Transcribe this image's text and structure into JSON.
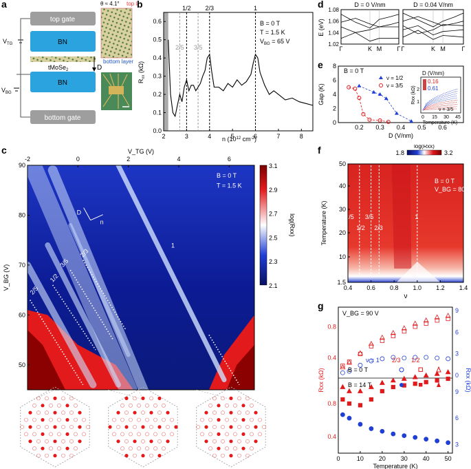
{
  "panel_labels": {
    "a": "a",
    "b": "b",
    "c": "c",
    "d": "d",
    "e": "e",
    "f": "f",
    "g": "g"
  },
  "panel_a": {
    "top_gate": "top gate",
    "bn_top": "BN",
    "bn_bottom": "BN",
    "bottom_gate": "bottom gate",
    "vtg": "V",
    "vtg_sub": "TG",
    "vbg": "V",
    "vbg_sub": "BG",
    "material": "tMoSe",
    "material_sub": "2",
    "d_arrow": "D",
    "theta": "θ ≈ 4.1°",
    "top_layer": "top layer",
    "bottom_layer": "bottom layer",
    "colors": {
      "gate": "#9e9e9e",
      "bn": "#2aa3df",
      "top_layer": "#e53935",
      "bottom_layer": "#1e56c8"
    }
  },
  "panel_b": {
    "ylabel": "R",
    "ylabel_sub": "xx",
    "ylabel_unit": " (kΩ)",
    "xlabel": "n (10",
    "xlabel_sup": "12",
    "xlabel_end": " cm",
    "xlabel_sup2": "-2",
    "xlabel_close": ")",
    "info": [
      "B = 0 T",
      "T = 1.5 K"
    ],
    "info_v": "V",
    "info_v_sub": "BG",
    "info_v_val": " = 65 V",
    "fill_labels": [
      "1/2",
      "2/3",
      "1"
    ],
    "fill_labels_gray": [
      "2/5",
      "3/5"
    ]
  },
  "chart_data": [
    {
      "type": "line",
      "id": "b",
      "title": "",
      "xlabel": "n (10^12 cm^-2)",
      "ylabel": "Rxx (kΩ)",
      "xlim": [
        2,
        8.5
      ],
      "ylim": [
        0,
        0.65
      ],
      "xticks": [
        2,
        3,
        4,
        5,
        6,
        7,
        8
      ],
      "yticks": [
        0,
        0.1,
        0.2,
        0.3,
        0.4,
        0.5,
        0.6
      ],
      "x": [
        2.2,
        2.3,
        2.4,
        2.5,
        2.6,
        2.7,
        2.8,
        2.9,
        3.0,
        3.1,
        3.2,
        3.3,
        3.4,
        3.5,
        3.6,
        3.7,
        3.8,
        3.9,
        4.0,
        4.1,
        4.2,
        4.4,
        4.6,
        4.8,
        5.0,
        5.2,
        5.4,
        5.6,
        5.8,
        5.9,
        6.0,
        6.1,
        6.2,
        6.4,
        6.6,
        6.8,
        7.0,
        7.3,
        7.6,
        7.9,
        8.2,
        8.5
      ],
      "y": [
        0.5,
        0.2,
        0.1,
        0.08,
        0.14,
        0.2,
        0.16,
        0.24,
        0.28,
        0.22,
        0.25,
        0.25,
        0.22,
        0.24,
        0.26,
        0.3,
        0.33,
        0.4,
        0.42,
        0.32,
        0.24,
        0.24,
        0.22,
        0.26,
        0.24,
        0.28,
        0.25,
        0.27,
        0.31,
        0.37,
        0.42,
        0.4,
        0.32,
        0.25,
        0.2,
        0.22,
        0.2,
        0.17,
        0.18,
        0.16,
        0.15,
        0.14
      ],
      "vlines": [
        {
          "x": 2.7,
          "label": "2/5"
        },
        {
          "x": 3.0,
          "label": "1/2"
        },
        {
          "x": 3.5,
          "label": "3/5"
        },
        {
          "x": 4.0,
          "label": "2/3"
        },
        {
          "x": 6.0,
          "label": "1"
        }
      ]
    },
    {
      "type": "heatmap",
      "id": "c",
      "xlabel": "V_TG (V)",
      "ylabel": "V_BG (V)",
      "xlim": [
        -2,
        7
      ],
      "ylim": [
        45,
        90
      ],
      "xticks": [
        -2,
        0,
        2,
        4,
        6
      ],
      "yticks": [
        50,
        60,
        70,
        80,
        90
      ],
      "colorbar": {
        "label": "log(Rxx)",
        "min": 2.1,
        "max": 3.1,
        "ticks": [
          3.1,
          2.9,
          2.7,
          2.5,
          2.3,
          2.1
        ]
      },
      "annotations": [
        "2/5",
        "1/2",
        "3/5",
        "2/3",
        "1"
      ],
      "info": [
        "B = 0 T",
        "T = 1.5 K"
      ],
      "axes_labels": [
        "D",
        "n"
      ]
    },
    {
      "type": "line",
      "id": "d",
      "ylabel": "E (eV)",
      "ylim": [
        1.02,
        1.08
      ],
      "yticks": [
        1.02,
        1.04,
        1.06,
        1.08
      ],
      "xticks": [
        "Γ",
        "K",
        "M",
        "Γ"
      ],
      "titles": [
        "D = 0 V/nm",
        "D = 0.04 V/nm"
      ]
    },
    {
      "type": "scatter",
      "id": "e",
      "xlabel": "D (V/nm)",
      "ylabel": "Gap (K)",
      "xlim": [
        0.1,
        0.7
      ],
      "ylim": [
        0,
        8
      ],
      "xticks": [
        0.2,
        0.3,
        0.4,
        0.5,
        0.6
      ],
      "yticks": [
        0,
        2,
        4,
        6,
        8
      ],
      "info": "B = 0 T",
      "series": [
        {
          "name": "ν = 1/2",
          "x": [
            0.2,
            0.27,
            0.3,
            0.33,
            0.38,
            0.45
          ],
          "y": [
            5.2,
            4.3,
            4.0,
            3.4,
            1.3,
            0.2
          ]
        },
        {
          "name": "ν = 3/5",
          "x": [
            0.15,
            0.18,
            0.2,
            0.22,
            0.25,
            0.3,
            0.34
          ],
          "y": [
            5.0,
            4.8,
            3.5,
            1.2,
            0.4,
            0.3,
            0.1
          ]
        }
      ],
      "inset": {
        "title": "D (V/nm)",
        "legend": [
          "0.16",
          "0.61"
        ],
        "xlabel": "Temperature (K)",
        "xticks": [
          0,
          15,
          30,
          45
        ],
        "ylabel": "Rxx (kΩ)",
        "yticks": [
          1,
          2
        ],
        "note": "ν = 3/5"
      }
    },
    {
      "type": "heatmap",
      "id": "f",
      "xlabel": "ν",
      "ylabel": "Temperature (K)",
      "xlim": [
        0.4,
        1.4
      ],
      "xticks": [
        0.4,
        0.6,
        0.8,
        1.0,
        1.2,
        1.4
      ],
      "yticks": [
        "1.5",
        10,
        20,
        30,
        40,
        50
      ],
      "colorbar": {
        "label": "log(Rxx)",
        "min": 1.8,
        "max": 3.2
      },
      "info": [
        "B = 0 T",
        "V_BG = 80 V"
      ],
      "annotations": [
        "2/5",
        "1/2",
        "3/5",
        "2/3",
        "1"
      ]
    },
    {
      "type": "scatter",
      "id": "g",
      "xlabel": "Temperature (K)",
      "ylabel_left": "Rxx (kΩ)",
      "ylabel_right": "Rxx (kΩ)",
      "xticks": [
        0,
        10,
        20,
        30,
        40,
        50
      ],
      "yticks_top_left": [
        0.4,
        0.8
      ],
      "yticks_top_right": [
        0,
        3,
        6,
        9
      ],
      "yticks_bot_left": [
        0.4,
        0.8
      ],
      "yticks_bot_right": [
        3,
        6,
        9
      ],
      "info": "V_BG = 90 V",
      "legend_top": "B = 0 T",
      "legend_bot": "B = 14 T",
      "nu": [
        "ν = 1",
        "2/3",
        "1/2"
      ],
      "series": [
        {
          "name": "ν=1 B=0",
          "x": [
            2,
            5,
            10,
            15,
            20,
            25,
            30,
            35,
            40,
            45,
            50
          ],
          "y": [
            0.35,
            0.55,
            1.4,
            2.0,
            2.3,
            2.5,
            2.4,
            2.5,
            2.5,
            2.4,
            2.3
          ]
        },
        {
          "name": "ν=2/3 B=0",
          "x": [
            2,
            5,
            10,
            15,
            20,
            25,
            30,
            35,
            40,
            45,
            50
          ],
          "y": [
            0.3,
            0.35,
            0.45,
            0.55,
            0.62,
            0.68,
            0.74,
            0.8,
            0.84,
            0.88,
            0.9
          ]
        },
        {
          "name": "ν=1/2 B=0",
          "x": [
            2,
            5,
            10,
            15,
            20,
            25,
            30,
            35,
            40,
            45,
            50
          ],
          "y": [
            0.28,
            0.34,
            0.46,
            0.58,
            0.66,
            0.72,
            0.78,
            0.84,
            0.88,
            0.92,
            0.94
          ]
        },
        {
          "name": "ν=1 B=14",
          "x": [
            2,
            5,
            10,
            15,
            20,
            25,
            30,
            35,
            40,
            45,
            50
          ],
          "y": [
            6.4,
            6.0,
            5.3,
            4.8,
            4.5,
            4.2,
            4.0,
            3.8,
            3.6,
            3.4,
            3.2
          ]
        },
        {
          "name": "ν=2/3 B=14",
          "x": [
            2,
            5,
            10,
            15,
            20,
            25,
            30,
            35,
            40,
            45,
            50
          ],
          "y": [
            0.85,
            0.8,
            0.78,
            0.85,
            0.95,
            1.0,
            1.02,
            1.04,
            1.06,
            1.08,
            1.1
          ]
        },
        {
          "name": "ν=1/2 B=14",
          "x": [
            2,
            5,
            10,
            15,
            20,
            25,
            30,
            35,
            40,
            45,
            50
          ],
          "y": [
            1.0,
            0.95,
            0.95,
            1.0,
            1.05,
            1.08,
            1.1,
            1.12,
            1.14,
            1.16,
            1.18
          ]
        }
      ]
    }
  ],
  "colors": {
    "red": "#e31a1c",
    "blue": "#1f3fd6",
    "darkblue": "#0a1a8a",
    "white": "#ffffff"
  }
}
